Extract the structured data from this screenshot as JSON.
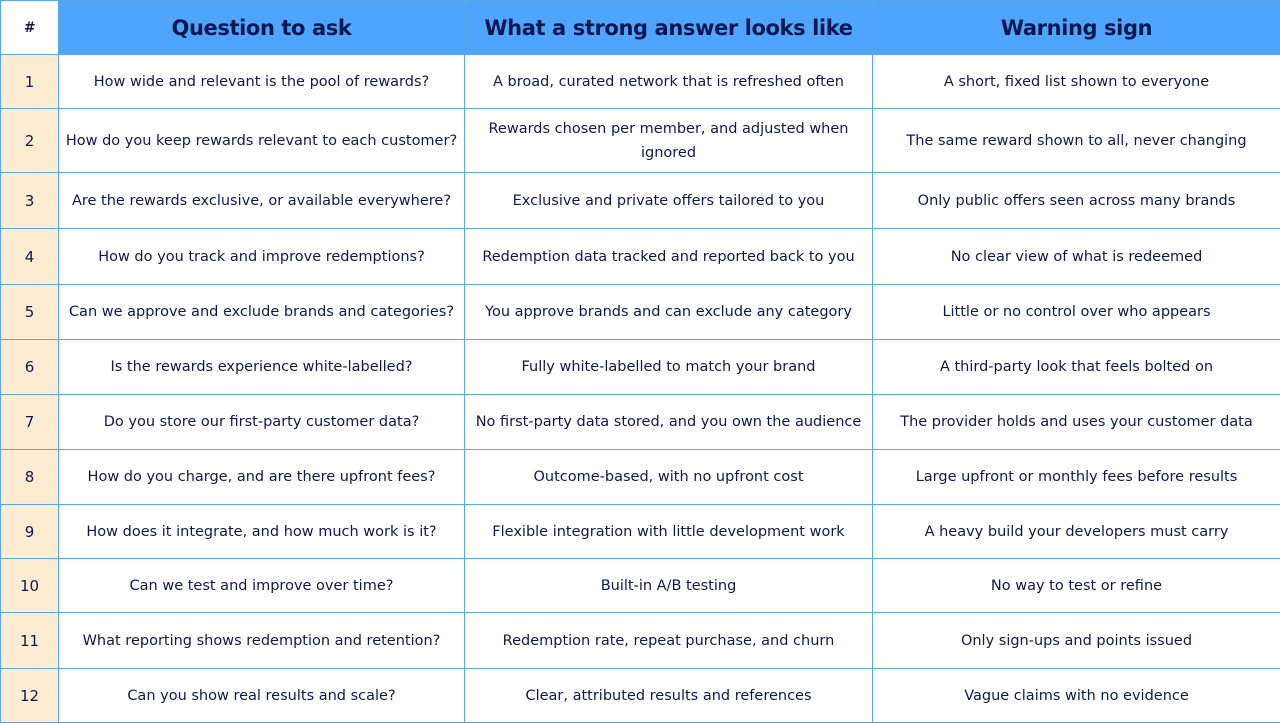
{
  "table": {
    "headers": [
      "#",
      "Question to ask",
      "What a strong answer looks like",
      "Warning sign"
    ],
    "rows": [
      {
        "num": "1",
        "question": "How wide and relevant is the pool of rewards?",
        "strong": "A broad, curated network that is refreshed often",
        "warning": "A short, fixed list shown to everyone"
      },
      {
        "num": "2",
        "question": "How do you keep rewards relevant to each customer?",
        "strong": "Rewards chosen per member, and adjusted when ignored",
        "warning": "The same reward shown to all, never changing"
      },
      {
        "num": "3",
        "question": "Are the rewards exclusive, or available everywhere?",
        "strong": "Exclusive and private offers tailored to you",
        "warning": "Only public offers seen across many brands"
      },
      {
        "num": "4",
        "question": "How do you track and improve redemptions?",
        "strong": "Redemption data tracked and reported back to you",
        "warning": "No clear view of what is redeemed"
      },
      {
        "num": "5",
        "question": "Can we approve and exclude brands and categories?",
        "strong": "You approve brands and can exclude any category",
        "warning": "Little or no control over who appears"
      },
      {
        "num": "6",
        "question": "Is the rewards experience white-labelled?",
        "strong": "Fully white-labelled to match your brand",
        "warning": "A third-party look that feels bolted on"
      },
      {
        "num": "7",
        "question": "Do you store our first-party customer data?",
        "strong": "No first-party data stored, and you own the audience",
        "warning": "The provider holds and uses your customer data"
      },
      {
        "num": "8",
        "question": "How do you charge, and are there upfront fees?",
        "strong": "Outcome-based, with no upfront cost",
        "warning": "Large upfront or monthly fees before results"
      },
      {
        "num": "9",
        "question": "How does it integrate, and how much work is it?",
        "strong": "Flexible integration with little development work",
        "warning": "A heavy build your developers must carry"
      },
      {
        "num": "10",
        "question": "Can we test and improve over time?",
        "strong": "Built-in A/B testing",
        "warning": "No way to test or refine"
      },
      {
        "num": "11",
        "question": "What reporting shows redemption and retention?",
        "strong": "Redemption rate, repeat purchase, and churn",
        "warning": "Only sign-ups and points issued"
      },
      {
        "num": "12",
        "question": "Can you show real results and scale?",
        "strong": "Clear, attributed results and references",
        "warning": "Vague claims with no evidence"
      }
    ]
  }
}
